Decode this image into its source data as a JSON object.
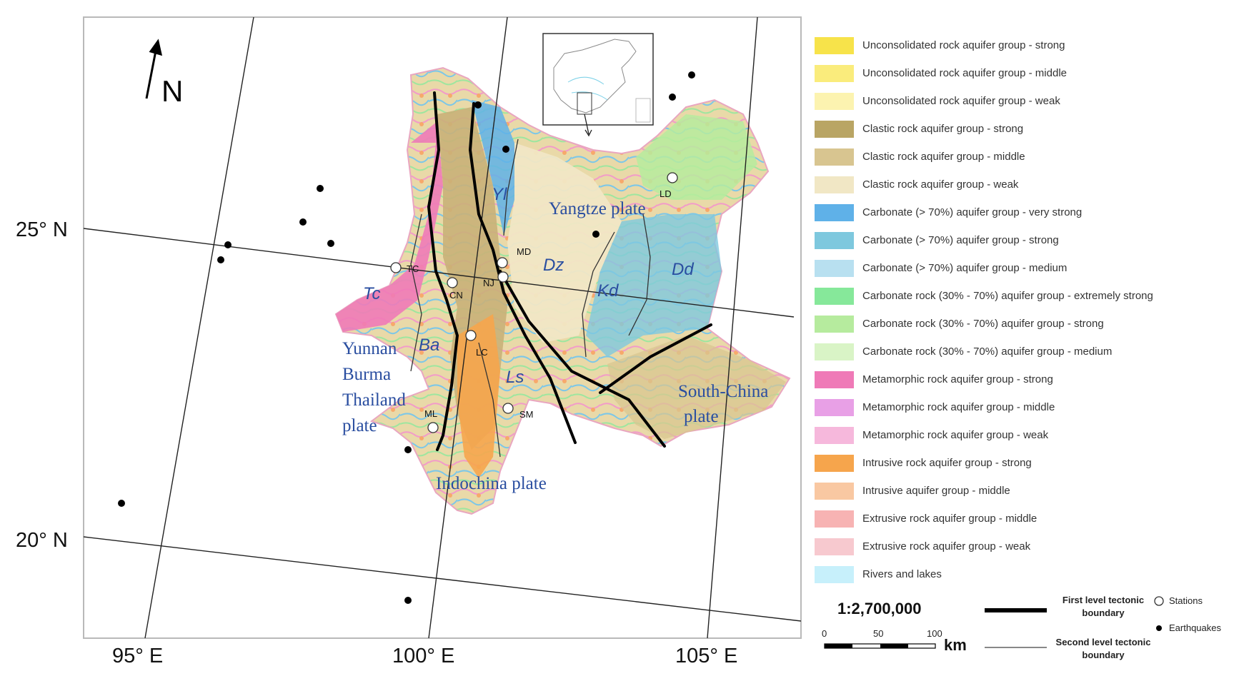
{
  "map": {
    "north_label": "N",
    "lat_labels": [
      "25° N",
      "20° N"
    ],
    "lon_labels": [
      "95° E",
      "100° E",
      "105° E"
    ],
    "plates": {
      "yangtze": "Yangtze plate",
      "yunnan_1": "Yunnan",
      "yunnan_2": "Burma",
      "yunnan_3": "Thailand",
      "yunnan_4": "plate",
      "indochina": "Indochina plate",
      "southchina_1": "South-China",
      "southchina_2": "plate"
    },
    "blocks": [
      "Tc",
      "Ba",
      "Yl",
      "Dz",
      "Kd",
      "Dd",
      "Ls"
    ],
    "stations": [
      "TC",
      "CN",
      "MD",
      "NJ",
      "LC",
      "ML",
      "SM",
      "LD"
    ]
  },
  "legend": {
    "items": [
      {
        "label": "Unconsolidated rock aquifer group - strong",
        "color": "#f7e34a"
      },
      {
        "label": "Unconsolidated rock aquifer group - middle",
        "color": "#faec7c"
      },
      {
        "label": "Unconsolidated rock aquifer group - weak",
        "color": "#fcf3b0"
      },
      {
        "label": "Clastic rock aquifer group - strong",
        "color": "#b9a564"
      },
      {
        "label": "Clastic rock aquifer group - middle",
        "color": "#d8c590"
      },
      {
        "label": "Clastic rock aquifer group - weak",
        "color": "#f1e7c5"
      },
      {
        "label": "Carbonate (> 70%) aquifer group - very strong",
        "color": "#5fb1e8"
      },
      {
        "label": "Carbonate (> 70%) aquifer group - strong",
        "color": "#7ec8de"
      },
      {
        "label": "Carbonate (> 70%) aquifer group - medium",
        "color": "#b8e0f0"
      },
      {
        "label": "Carbonate rock (30% - 70%) aquifer group - extremely strong",
        "color": "#86e89a"
      },
      {
        "label": "Carbonate rock (30% - 70%) aquifer group - strong",
        "color": "#b6eb9e"
      },
      {
        "label": "Carbonate rock (30% - 70%) aquifer group - medium",
        "color": "#d9f4c6"
      },
      {
        "label": "Metamorphic rock aquifer group - strong",
        "color": "#ef7ab7"
      },
      {
        "label": "Metamorphic rock aquifer group - middle",
        "color": "#e8a0e6"
      },
      {
        "label": "Metamorphic rock aquifer group - weak",
        "color": "#f6b8dc"
      },
      {
        "label": "Intrusive rock aquifer group - strong",
        "color": "#f6a54c"
      },
      {
        "label": "Intrusive aquifer group - middle",
        "color": "#f9c8a2"
      },
      {
        "label": "Extrusive rock aquifer group - middle",
        "color": "#f7b3b3"
      },
      {
        "label": "Extrusive rock aquifer group - weak",
        "color": "#f7c9cf"
      },
      {
        "label": "Rivers and lakes",
        "color": "#c7f0fb"
      }
    ],
    "scale": "1:2,700,000",
    "scale_ticks": [
      "0",
      "50",
      "100"
    ],
    "scale_unit": "km",
    "first_level": "First level tectonic boundary",
    "second_level": "Second level tectonic boundary",
    "stations": "Stations",
    "earthquakes": "Earthquakes"
  }
}
